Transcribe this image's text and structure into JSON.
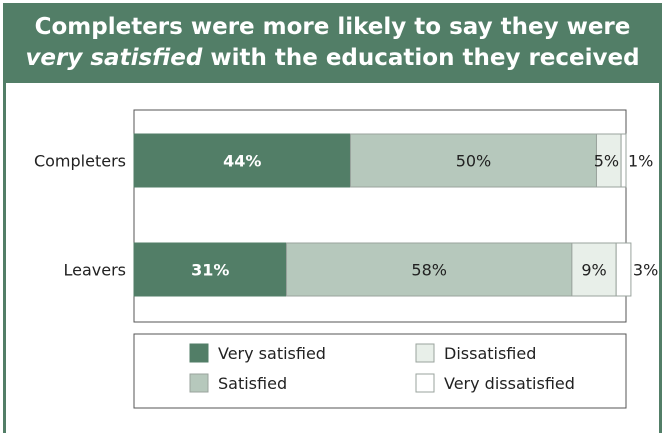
{
  "title": {
    "line1": "Completers were more likely to say they were",
    "line2_emphasis": "very satisfied",
    "line2_rest": " with the education they received"
  },
  "chart_data": {
    "type": "bar",
    "orientation": "horizontal",
    "stacked": true,
    "categories": [
      "Completers",
      "Leavers"
    ],
    "series": [
      {
        "name": "Very satisfied",
        "values": [
          44,
          31
        ],
        "labels": [
          "44%",
          "31%"
        ],
        "color": "#527e67"
      },
      {
        "name": "Satisfied",
        "values": [
          50,
          58
        ],
        "labels": [
          "50%",
          "58%"
        ],
        "color": "#b6c8bc"
      },
      {
        "name": "Dissatisfied",
        "values": [
          5,
          9
        ],
        "labels": [
          "5%",
          "9%"
        ],
        "color": "#e8efe9"
      },
      {
        "name": "Very dissatisfied",
        "values": [
          1,
          3
        ],
        "labels": [
          "1%",
          "3%"
        ],
        "color": "#ffffff"
      }
    ],
    "xlim": [
      0,
      100
    ],
    "grid": false,
    "legend_position": "bottom"
  },
  "colors": {
    "header_background": "#527e67",
    "bar_outline": "#9aa39d"
  }
}
